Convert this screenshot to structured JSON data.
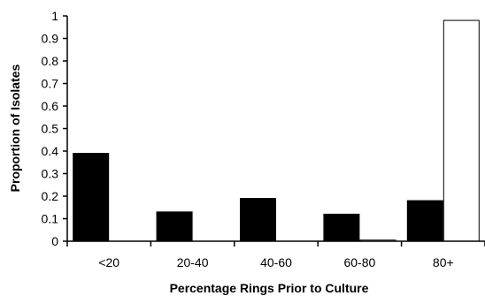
{
  "chart_data": {
    "type": "bar",
    "title": "",
    "xlabel": "Percentage Rings Prior to Culture",
    "ylabel": "Proportion of Isolates",
    "categories": [
      "<20",
      "20-40",
      "40-60",
      "60-80",
      "80+"
    ],
    "series": [
      {
        "name": "",
        "color": "#000000",
        "values": [
          0.39,
          0.13,
          0.19,
          0.12,
          0.18
        ]
      },
      {
        "name": "",
        "color": "#ffffff",
        "values": [
          0,
          0,
          0,
          0.005,
          0.98
        ]
      }
    ],
    "ylim": [
      0,
      1
    ],
    "yticks": [
      "0",
      "0.1",
      "0.2",
      "0.3",
      "0.4",
      "0.5",
      "0.6",
      "0.7",
      "0.8",
      "0.9",
      "1"
    ],
    "grid": false,
    "legend": "none"
  }
}
